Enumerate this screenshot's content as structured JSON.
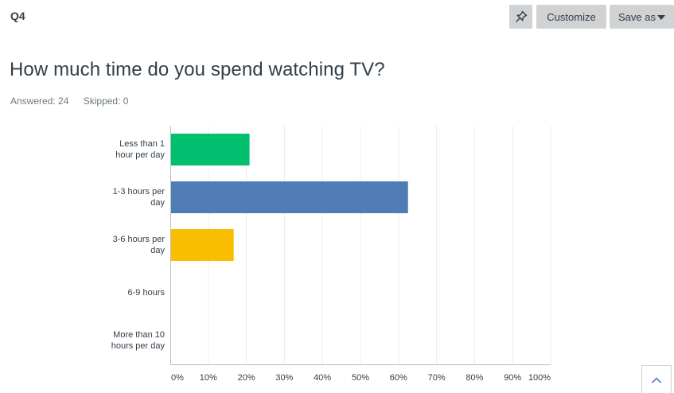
{
  "header": {
    "question_number": "Q4",
    "customize_label": "Customize",
    "save_as_label": "Save as"
  },
  "question": {
    "title": "How much time do you spend watching TV?",
    "answered": "Answered: 24",
    "skipped": "Skipped: 0"
  },
  "colors": {
    "green": "#00bf6f",
    "blue": "#507cb6",
    "yellow": "#f9be00",
    "gridline": "#ededed",
    "axis": "#bbbbbb"
  },
  "chart_data": {
    "type": "bar",
    "orientation": "horizontal",
    "categories": [
      "Less than 1 hour per day",
      "1-3 hours per day",
      "3-6 hours per day",
      "6-9 hours",
      "More than 10 hours per day"
    ],
    "category_label_lines": [
      [
        "Less than 1",
        "hour per day"
      ],
      [
        "1-3 hours per",
        "day"
      ],
      [
        "3-6 hours per",
        "day"
      ],
      [
        "6-9 hours"
      ],
      [
        "More than 10",
        "hours per day"
      ]
    ],
    "values": [
      20.83,
      62.5,
      16.67,
      0,
      0
    ],
    "bar_colors": [
      "#00bf6f",
      "#507cb6",
      "#f9be00",
      "#507cb6",
      "#507cb6"
    ],
    "xlim": [
      0,
      100
    ],
    "x_ticks": [
      0,
      10,
      20,
      30,
      40,
      50,
      60,
      70,
      80,
      90,
      100
    ],
    "x_tick_labels": [
      "0%",
      "10%",
      "20%",
      "30%",
      "40%",
      "50%",
      "60%",
      "70%",
      "80%",
      "90%",
      "100%"
    ],
    "grid": true,
    "legend": "none"
  }
}
